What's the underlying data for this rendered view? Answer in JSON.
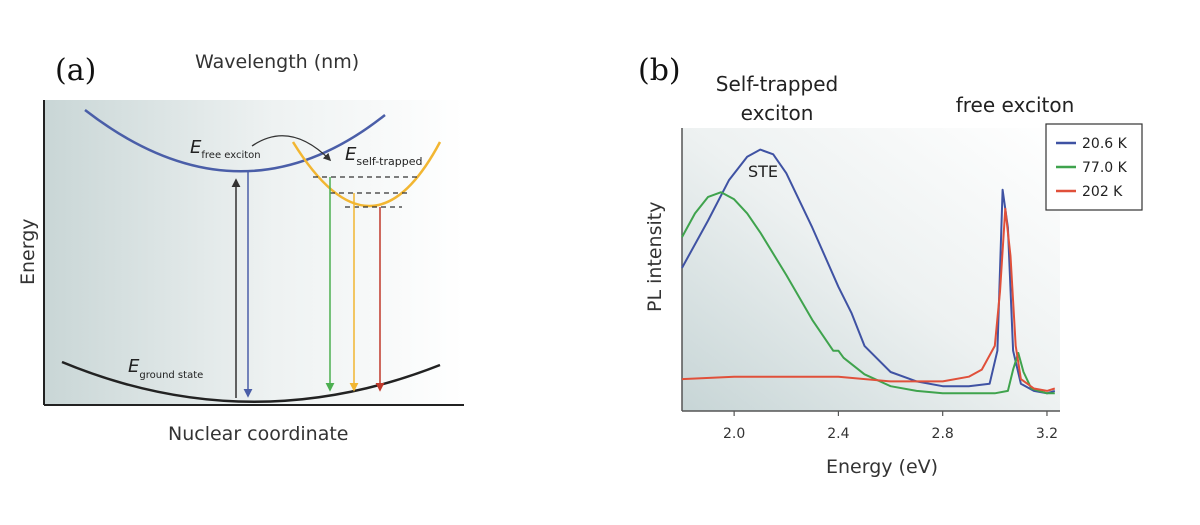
{
  "panel_a": {
    "label": "(a)",
    "top_title": "Wavelength (nm)",
    "ylabel": "Energy",
    "xlabel": "Nuclear coordinate",
    "free_exciton": {
      "main": "E",
      "sub": "free exciton"
    },
    "self_trapped": {
      "main": "E",
      "sub": "self-trapped"
    },
    "ground_state": {
      "main": "E",
      "sub": "ground state"
    },
    "colors": {
      "free": "#4a5ea8",
      "self_trapped": "#f2b632",
      "ground": "#222222",
      "arrow_green": "#4caf50",
      "arrow_yellow": "#f2b632",
      "arrow_red": "#c0392b",
      "arrow_blue": "#4a5ea8"
    }
  },
  "panel_b": {
    "label": "(b)",
    "annotation_ste_title": [
      "Self-trapped",
      "exciton"
    ],
    "annotation_free": "free exciton",
    "peak_label": "STE"
  },
  "chart_data": {
    "type": "line",
    "xlabel": "Energy (eV)",
    "ylabel": "PL intensity",
    "xlim": [
      1.8,
      3.25
    ],
    "xticks": [
      "2.0",
      "2.4",
      "2.8",
      "3.2"
    ],
    "legend_position": "top-right",
    "series": [
      {
        "name": "20.6 K",
        "color": "#3f52a3",
        "x": [
          1.8,
          1.9,
          1.98,
          2.05,
          2.1,
          2.15,
          2.2,
          2.3,
          2.4,
          2.45,
          2.5,
          2.6,
          2.7,
          2.8,
          2.9,
          2.98,
          3.01,
          3.03,
          3.05,
          3.07,
          3.1,
          3.15,
          3.2,
          3.23
        ],
        "y": [
          0.55,
          0.75,
          0.92,
          1.02,
          1.05,
          1.03,
          0.95,
          0.72,
          0.47,
          0.36,
          0.22,
          0.11,
          0.07,
          0.05,
          0.05,
          0.06,
          0.2,
          0.88,
          0.72,
          0.2,
          0.06,
          0.03,
          0.02,
          0.03
        ]
      },
      {
        "name": "77.0 K",
        "color": "#3fa34d",
        "x": [
          1.8,
          1.85,
          1.9,
          1.95,
          2.0,
          2.05,
          2.1,
          2.2,
          2.3,
          2.38,
          2.4,
          2.42,
          2.5,
          2.6,
          2.7,
          2.8,
          2.9,
          3.0,
          3.05,
          3.07,
          3.09,
          3.11,
          3.14,
          3.2,
          3.23
        ],
        "y": [
          0.68,
          0.78,
          0.85,
          0.87,
          0.84,
          0.78,
          0.7,
          0.52,
          0.33,
          0.2,
          0.2,
          0.17,
          0.1,
          0.05,
          0.03,
          0.02,
          0.02,
          0.02,
          0.03,
          0.12,
          0.19,
          0.11,
          0.04,
          0.02,
          0.02
        ]
      },
      {
        "name": "202 K",
        "color": "#e0503a",
        "x": [
          1.8,
          2.0,
          2.2,
          2.4,
          2.6,
          2.7,
          2.8,
          2.9,
          2.95,
          3.0,
          3.02,
          3.04,
          3.06,
          3.08,
          3.1,
          3.15,
          3.2,
          3.23
        ],
        "y": [
          0.08,
          0.09,
          0.09,
          0.09,
          0.07,
          0.07,
          0.07,
          0.09,
          0.12,
          0.22,
          0.45,
          0.8,
          0.6,
          0.22,
          0.08,
          0.04,
          0.03,
          0.04
        ]
      }
    ]
  }
}
